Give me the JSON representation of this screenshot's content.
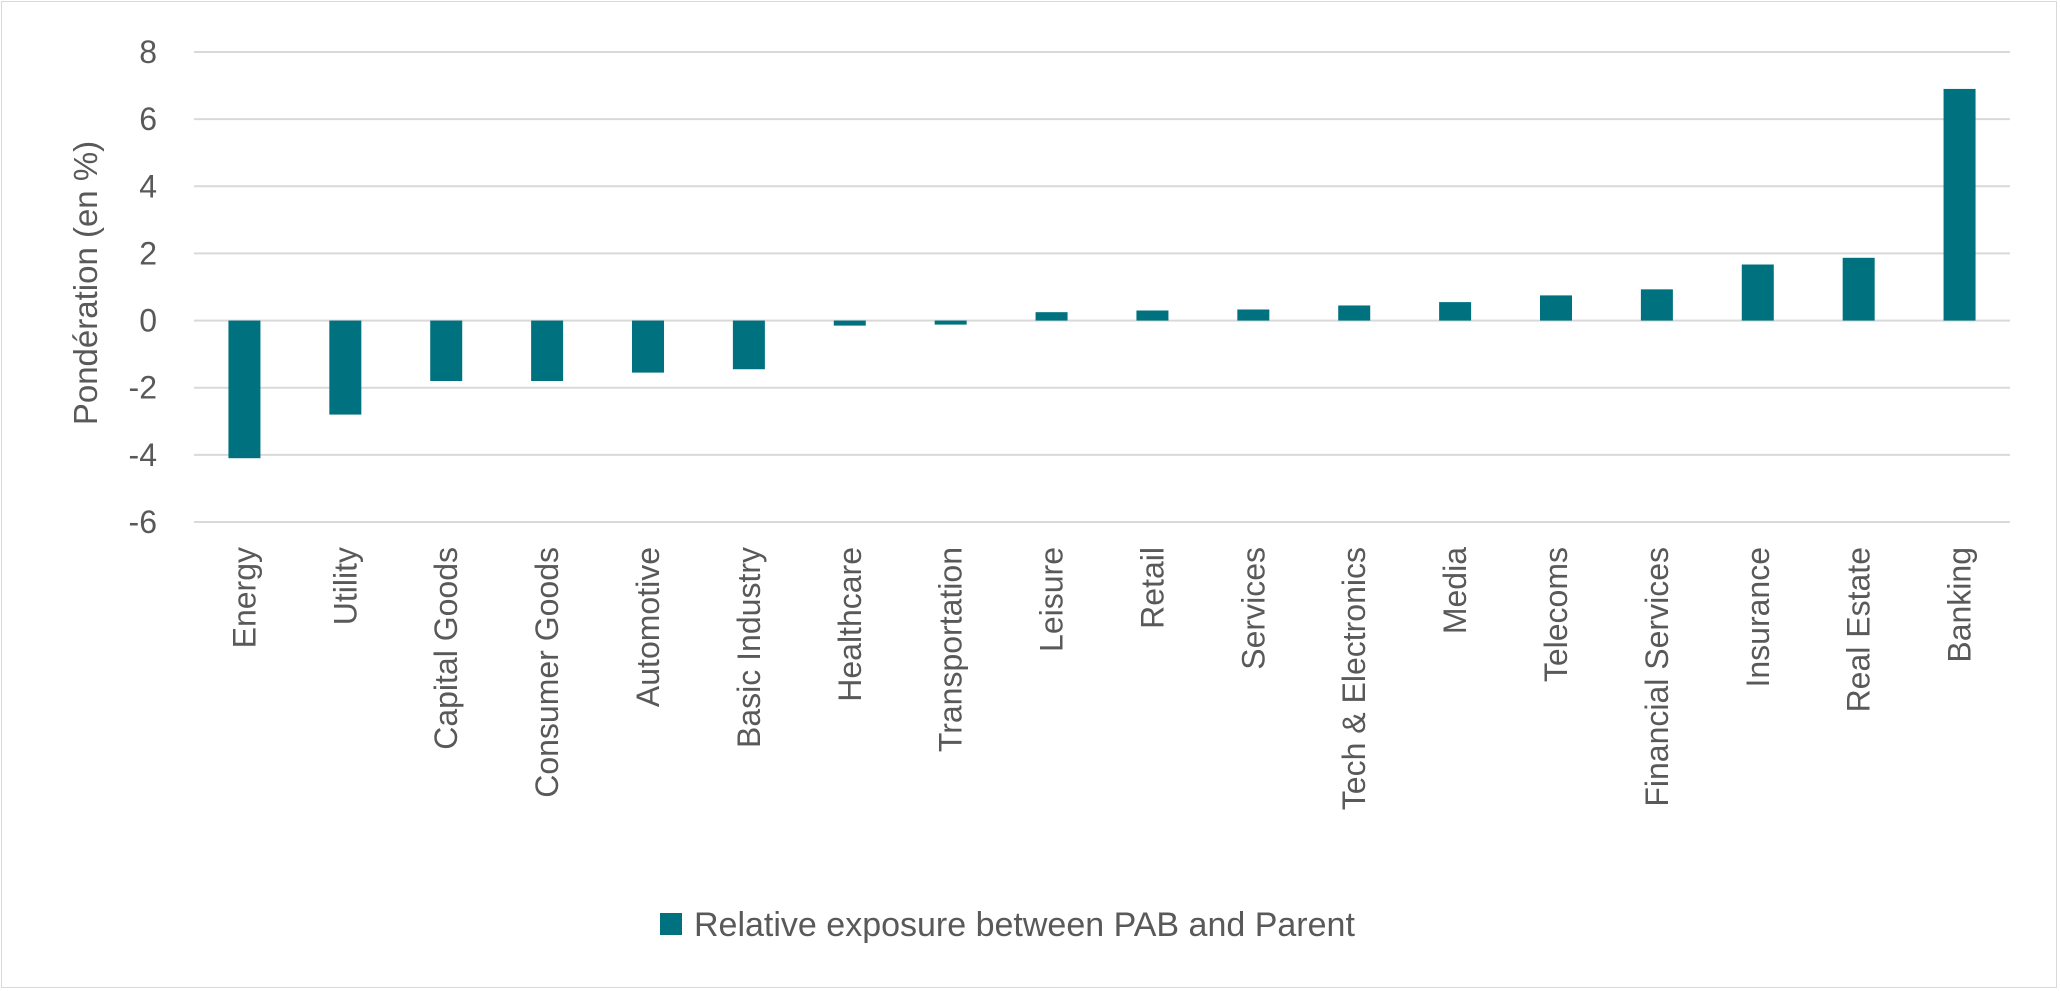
{
  "chart_data": {
    "type": "bar",
    "title": "",
    "xlabel": "",
    "ylabel": "Pondération (en %)",
    "ylim": [
      -6,
      8
    ],
    "yticks": [
      8,
      6,
      4,
      2,
      0,
      -2,
      -4,
      -6
    ],
    "grid": true,
    "legend_position": "bottom",
    "bar_color": "#00727f",
    "categories": [
      "Energy",
      "Utility",
      "Capital Goods",
      "Consumer Goods",
      "Automotive",
      "Basic Industry",
      "Healthcare",
      "Transportation",
      "Leisure",
      "Retail",
      "Services",
      "Tech & Electronics",
      "Media",
      "Telecoms",
      "Financial Services",
      "Insurance",
      "Real Estate",
      "Banking"
    ],
    "series": [
      {
        "name": "Relative exposure between PAB and Parent",
        "values": [
          -4.1,
          -2.8,
          -1.8,
          -1.8,
          -1.55,
          -1.45,
          -0.15,
          -0.12,
          0.25,
          0.3,
          0.33,
          0.45,
          0.55,
          0.75,
          0.93,
          1.67,
          1.87,
          6.9
        ]
      }
    ]
  }
}
